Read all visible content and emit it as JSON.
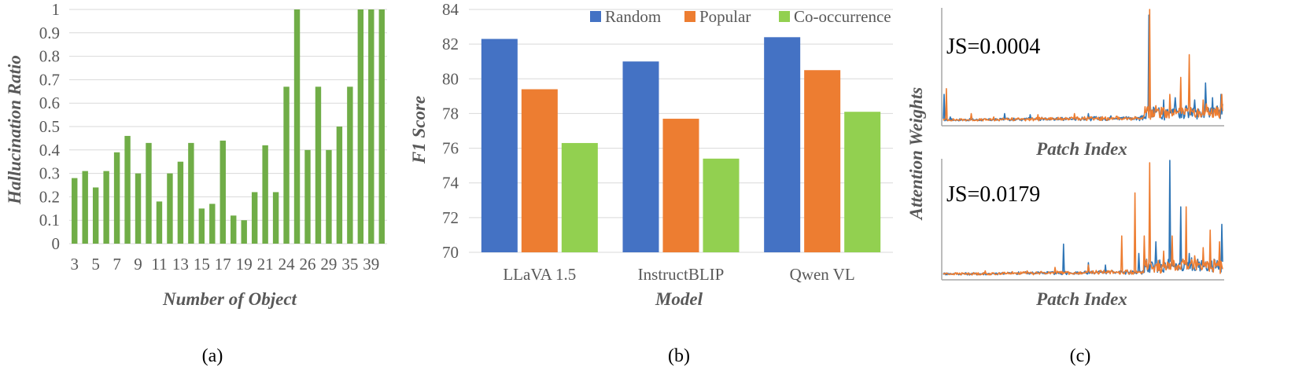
{
  "chart_data": [
    {
      "type": "bar",
      "caption": "(a)",
      "xlabel": "Number of Object",
      "ylabel": "Hallucination Ratio",
      "ylim": [
        0,
        1
      ],
      "yticks": [
        "0",
        "0.1",
        "0.2",
        "0.3",
        "0.4",
        "0.5",
        "0.6",
        "0.7",
        "0.8",
        "0.9",
        "1"
      ],
      "categories": [
        "3",
        "4",
        "5",
        "6",
        "7",
        "8",
        "9",
        "10",
        "11",
        "12",
        "13",
        "14",
        "15",
        "16",
        "17",
        "18",
        "19",
        "20",
        "21",
        "22",
        "24",
        "25",
        "26",
        "28",
        "29",
        "30",
        "35",
        "37",
        "39",
        "40"
      ],
      "xtick_labels": [
        "3",
        "5",
        "7",
        "9",
        "11",
        "13",
        "15",
        "17",
        "19",
        "21",
        "24",
        "26",
        "29",
        "35",
        "39"
      ],
      "values": [
        0.28,
        0.31,
        0.24,
        0.31,
        0.39,
        0.46,
        0.3,
        0.43,
        0.18,
        0.3,
        0.35,
        0.43,
        0.15,
        0.17,
        0.44,
        0.12,
        0.1,
        0.22,
        0.42,
        0.22,
        0.67,
        1.0,
        0.4,
        0.67,
        0.4,
        0.5,
        0.67,
        1.0,
        1.0,
        1.0
      ],
      "color": "#70AD47"
    },
    {
      "type": "bar",
      "caption": "(b)",
      "xlabel": "Model",
      "ylabel": "F1 Score",
      "ylim": [
        70,
        84
      ],
      "yticks": [
        "70",
        "72",
        "74",
        "76",
        "78",
        "80",
        "82",
        "84"
      ],
      "categories": [
        "LLaVA 1.5",
        "InstructBLIP",
        "Qwen VL"
      ],
      "series": [
        {
          "name": "Random",
          "color": "#4472C4",
          "values": [
            82.3,
            81.0,
            82.4
          ]
        },
        {
          "name": "Popular",
          "color": "#ED7D31",
          "values": [
            79.4,
            77.7,
            80.5
          ]
        },
        {
          "name": "Co-occurrence",
          "color": "#92D050",
          "values": [
            76.3,
            75.4,
            78.1
          ]
        }
      ],
      "legend": "top-right"
    },
    {
      "type": "line",
      "caption": "(c)",
      "ylabel": "Attention Weights",
      "panels": [
        {
          "label": "JS=0.0004",
          "xlabel": "Patch Index",
          "series": [
            {
              "name": "blue",
              "color": "#2E75B6",
              "peaks": [
                [
                  0.004,
                  0.25
                ],
                [
                  0.025,
                  0.05
                ],
                [
                  0.22,
                  0.08
                ],
                [
                  0.31,
                  0.07
                ],
                [
                  0.52,
                  0.08
                ],
                [
                  0.6,
                  0.06
                ],
                [
                  0.735,
                  0.95
                ],
                [
                  0.79,
                  0.2
                ],
                [
                  0.83,
                  0.22
                ],
                [
                  0.87,
                  0.15
                ],
                [
                  0.9,
                  0.2
                ],
                [
                  0.94,
                  0.35
                ],
                [
                  0.965,
                  0.22
                ],
                [
                  0.995,
                  0.25
                ]
              ]
            },
            {
              "name": "orange",
              "color": "#ED7D31",
              "peaks": [
                [
                  0.01,
                  0.3
                ],
                [
                  0.1,
                  0.08
                ],
                [
                  0.18,
                  0.05
                ],
                [
                  0.34,
                  0.07
                ],
                [
                  0.47,
                  0.08
                ],
                [
                  0.58,
                  0.05
                ],
                [
                  0.74,
                  1.0
                ],
                [
                  0.76,
                  0.15
                ],
                [
                  0.81,
                  0.25
                ],
                [
                  0.85,
                  0.4
                ],
                [
                  0.88,
                  0.6
                ],
                [
                  0.93,
                  0.2
                ],
                [
                  0.97,
                  0.12
                ],
                [
                  0.998,
                  0.25
                ]
              ]
            }
          ]
        },
        {
          "label": "JS=0.0179",
          "xlabel": "Patch Index",
          "series": [
            {
              "name": "blue",
              "color": "#2E75B6",
              "peaks": [
                [
                  0.43,
                  0.28
                ],
                [
                  0.52,
                  0.12
                ],
                [
                  0.58,
                  0.1
                ],
                [
                  0.7,
                  0.2
                ],
                [
                  0.76,
                  0.3
                ],
                [
                  0.81,
                  1.0
                ],
                [
                  0.85,
                  0.6
                ],
                [
                  0.88,
                  0.2
                ],
                [
                  0.91,
                  0.15
                ],
                [
                  0.97,
                  0.15
                ],
                [
                  0.998,
                  0.45
                ]
              ]
            },
            {
              "name": "orange",
              "color": "#ED7D31",
              "peaks": [
                [
                  0.15,
                  0.05
                ],
                [
                  0.3,
                  0.05
                ],
                [
                  0.4,
                  0.08
                ],
                [
                  0.52,
                  0.1
                ],
                [
                  0.64,
                  0.35
                ],
                [
                  0.685,
                  0.72
                ],
                [
                  0.72,
                  0.35
                ],
                [
                  0.74,
                  0.98
                ],
                [
                  0.79,
                  0.22
                ],
                [
                  0.82,
                  0.35
                ],
                [
                  0.87,
                  0.6
                ],
                [
                  0.9,
                  0.18
                ],
                [
                  0.93,
                  0.25
                ],
                [
                  0.955,
                  0.4
                ],
                [
                  0.99,
                  0.3
                ]
              ]
            }
          ]
        }
      ]
    }
  ]
}
